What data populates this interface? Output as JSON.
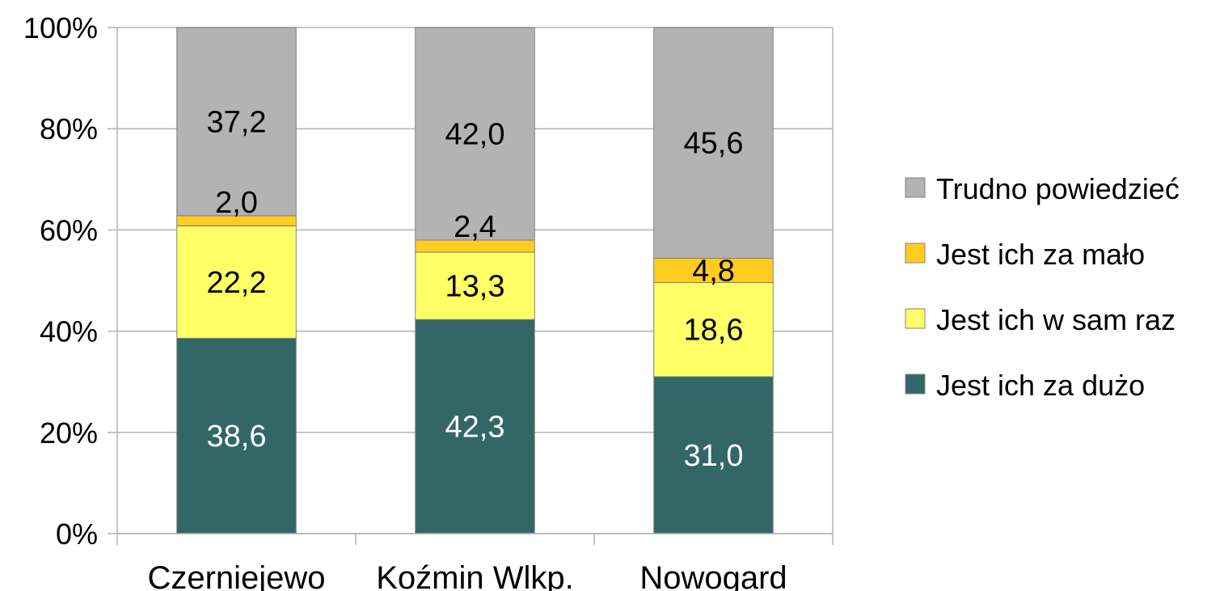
{
  "chart_data": {
    "type": "bar",
    "stacked": true,
    "percent_stacked": true,
    "categories": [
      "Czerniejewo",
      "Koźmin Wlkp.",
      "Nowogard"
    ],
    "series": [
      {
        "name": "Jest ich za dużo",
        "values": [
          38.6,
          42.3,
          31.0
        ],
        "labels": [
          "38,6",
          "42,3",
          "31,0"
        ],
        "color": "#336666",
        "label_color": "#ffffff"
      },
      {
        "name": "Jest ich w sam raz",
        "values": [
          22.2,
          13.3,
          18.6
        ],
        "labels": [
          "22,2",
          "13,3",
          "18,6"
        ],
        "color": "#ffff66",
        "label_color": "#000000"
      },
      {
        "name": "Jest ich za mało",
        "values": [
          2.0,
          2.4,
          4.8
        ],
        "labels": [
          "2,0",
          "2,4",
          "4,8"
        ],
        "color": "#ffcc22",
        "label_color": "#000000"
      },
      {
        "name": "Trudno powiedzieć",
        "values": [
          37.2,
          42.0,
          45.6
        ],
        "labels": [
          "37,2",
          "42,0",
          "45,6"
        ],
        "color": "#b3b3b3",
        "label_color": "#000000"
      }
    ],
    "y_ticks": [
      "0%",
      "20%",
      "40%",
      "60%",
      "80%",
      "100%"
    ],
    "ylim": [
      0,
      100
    ],
    "grid": true,
    "legend_position": "right"
  }
}
